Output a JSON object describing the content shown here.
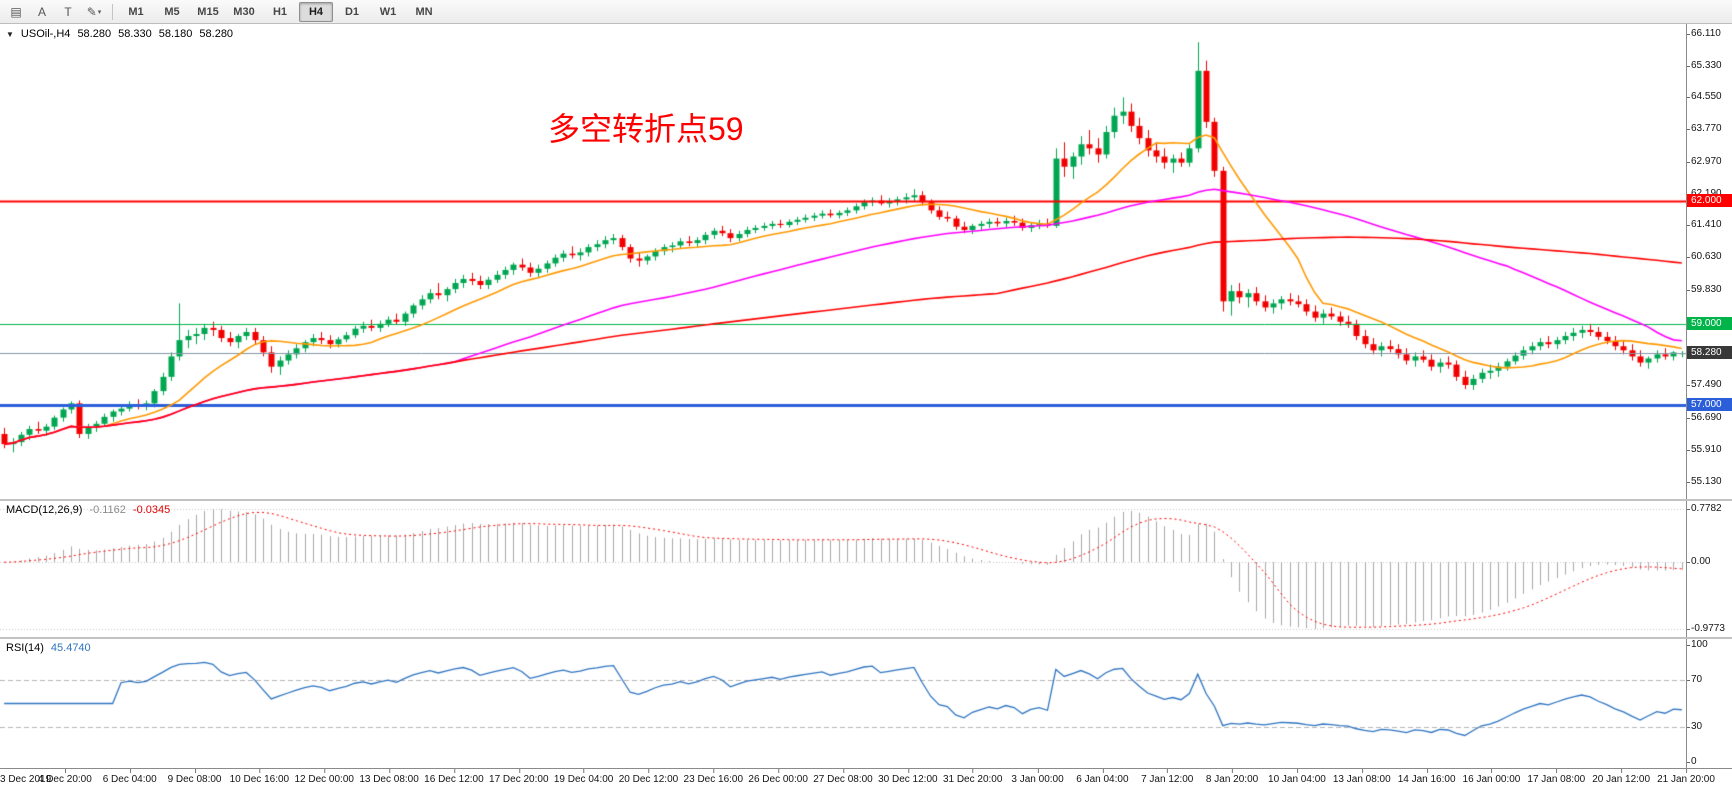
{
  "toolbar": {
    "icons": [
      {
        "name": "charts-grid-icon",
        "glyph": "▤"
      },
      {
        "name": "cursor-a-tool",
        "glyph": "A"
      },
      {
        "name": "text-tool",
        "glyph": "T"
      },
      {
        "name": "line-studies-tool",
        "glyph": "✎",
        "caret": "▾"
      }
    ],
    "timeframes": [
      "M1",
      "M5",
      "M15",
      "M30",
      "H1",
      "H4",
      "D1",
      "W1",
      "MN"
    ],
    "active_timeframe": "H4"
  },
  "chart": {
    "header": {
      "collapse_glyph": "▼",
      "symbol": "USOil-,H4",
      "open": "58.280",
      "high": "58.330",
      "low": "58.180",
      "close": "58.280"
    },
    "annotation": "多空转折点59",
    "colors": {
      "up": "#00a651",
      "down": "#f20000",
      "axis_text": "#141414"
    },
    "price_axis": {
      "ticks": [
        "66.110",
        "65.330",
        "64.550",
        "63.770",
        "62.970",
        "62.190",
        "61.410",
        "60.630",
        "59.830",
        "57.490",
        "56.690",
        "55.910",
        "55.130"
      ]
    }
  },
  "indicators": {
    "macd": {
      "label": "MACD(12,26,9)",
      "value_main": "-0.1162",
      "value_signal": "-0.0345",
      "fast": 12,
      "slow": 26,
      "signal": 9,
      "axis": [
        "0.7782",
        "0.00",
        "-0.9773"
      ],
      "axis_max": 0.7782,
      "axis_min": -0.9773,
      "hist_color": "#a8a8a8",
      "signal_color": "#ff0000"
    },
    "rsi": {
      "label": "RSI(14)",
      "value": "45.4740",
      "period": 14,
      "axis": [
        "100",
        "70",
        "30",
        "0"
      ],
      "levels": [
        70,
        30
      ],
      "color": "#2f74c0"
    }
  },
  "chart_data": {
    "type": "candlestick",
    "symbol": "USOil",
    "timeframe": "H4",
    "price_range": [
      55.0,
      66.25
    ],
    "levels": [
      {
        "price": 62.0,
        "label": "62.000",
        "color": "#ff0000",
        "line_width": 2,
        "badge_bg": "#ff0000"
      },
      {
        "price": 59.0,
        "label": "59.000",
        "color": "#00b44a",
        "line_width": 1,
        "badge_bg": "#00b44a"
      },
      {
        "price": 57.0,
        "label": "57.000",
        "color": "#2b5fd9",
        "line_width": 3,
        "badge_bg": "#2b5fd9"
      },
      {
        "price": 58.28,
        "label": "58.280",
        "color": "#8096a8",
        "line_width": 1,
        "badge_bg": "#383838"
      }
    ],
    "moving_averages": [
      {
        "period": 13,
        "color": "#ff9900"
      },
      {
        "period": 55,
        "color": "#ff00ff"
      },
      {
        "period": 120,
        "color": "#ff0000"
      }
    ],
    "x_labels": [
      "3 Dec 2019",
      "4 Dec 20:00",
      "6 Dec 04:00",
      "9 Dec 08:00",
      "10 Dec 16:00",
      "12 Dec 00:00",
      "13 Dec 08:00",
      "16 Dec 12:00",
      "17 Dec 20:00",
      "19 Dec 04:00",
      "20 Dec 12:00",
      "23 Dec 16:00",
      "26 Dec 00:00",
      "27 Dec 08:00",
      "30 Dec 12:00",
      "31 Dec 20:00",
      "3 Jan 00:00",
      "6 Jan 04:00",
      "7 Jan 12:00",
      "8 Jan 20:00",
      "10 Jan 04:00",
      "13 Jan 08:00",
      "14 Jan 16:00",
      "16 Jan 00:00",
      "17 Jan 08:00",
      "20 Jan 12:00",
      "21 Jan 20:00"
    ],
    "ohlc": [
      [
        56.3,
        56.45,
        55.95,
        56.05
      ],
      [
        56.05,
        56.2,
        55.85,
        56.1
      ],
      [
        56.1,
        56.35,
        56.0,
        56.28
      ],
      [
        56.28,
        56.5,
        56.15,
        56.42
      ],
      [
        56.42,
        56.6,
        56.3,
        56.38
      ],
      [
        56.38,
        56.55,
        56.25,
        56.48
      ],
      [
        56.48,
        56.75,
        56.4,
        56.7
      ],
      [
        56.7,
        56.95,
        56.6,
        56.9
      ],
      [
        56.9,
        57.1,
        56.8,
        57.05
      ],
      [
        57.05,
        57.12,
        56.2,
        56.3
      ],
      [
        56.3,
        56.55,
        56.18,
        56.45
      ],
      [
        56.45,
        56.62,
        56.35,
        56.55
      ],
      [
        56.55,
        56.8,
        56.48,
        56.72
      ],
      [
        56.72,
        56.9,
        56.6,
        56.85
      ],
      [
        56.85,
        57.0,
        56.75,
        56.92
      ],
      [
        56.92,
        57.1,
        56.85,
        57.02
      ],
      [
        57.02,
        57.15,
        56.9,
        56.98
      ],
      [
        56.98,
        57.12,
        56.88,
        57.05
      ],
      [
        57.05,
        57.4,
        56.95,
        57.35
      ],
      [
        57.35,
        57.8,
        57.25,
        57.7
      ],
      [
        57.7,
        58.3,
        57.6,
        58.2
      ],
      [
        58.2,
        59.5,
        58.1,
        58.6
      ],
      [
        58.6,
        58.85,
        58.4,
        58.7
      ],
      [
        58.7,
        58.9,
        58.5,
        58.75
      ],
      [
        58.75,
        59.0,
        58.6,
        58.9
      ],
      [
        58.9,
        59.05,
        58.7,
        58.85
      ],
      [
        58.85,
        58.95,
        58.55,
        58.65
      ],
      [
        58.65,
        58.8,
        58.45,
        58.55
      ],
      [
        58.55,
        58.75,
        58.4,
        58.7
      ],
      [
        58.7,
        58.9,
        58.6,
        58.8
      ],
      [
        58.8,
        58.9,
        58.5,
        58.6
      ],
      [
        58.6,
        58.7,
        58.2,
        58.3
      ],
      [
        58.3,
        58.45,
        57.8,
        57.95
      ],
      [
        57.95,
        58.2,
        57.75,
        58.1
      ],
      [
        58.1,
        58.35,
        58.0,
        58.25
      ],
      [
        58.25,
        58.5,
        58.15,
        58.4
      ],
      [
        58.4,
        58.6,
        58.3,
        58.55
      ],
      [
        58.55,
        58.75,
        58.45,
        58.65
      ],
      [
        58.65,
        58.8,
        58.5,
        58.6
      ],
      [
        58.6,
        58.72,
        58.4,
        58.5
      ],
      [
        58.5,
        58.68,
        58.42,
        58.62
      ],
      [
        58.62,
        58.8,
        58.55,
        58.72
      ],
      [
        58.72,
        58.95,
        58.65,
        58.88
      ],
      [
        58.88,
        59.05,
        58.78,
        58.95
      ],
      [
        58.95,
        59.1,
        58.82,
        58.9
      ],
      [
        58.9,
        59.08,
        58.8,
        59.0
      ],
      [
        59.0,
        59.18,
        58.92,
        59.1
      ],
      [
        59.1,
        59.25,
        58.98,
        59.05
      ],
      [
        59.05,
        59.3,
        58.95,
        59.25
      ],
      [
        59.25,
        59.5,
        59.15,
        59.45
      ],
      [
        59.45,
        59.7,
        59.35,
        59.6
      ],
      [
        59.6,
        59.85,
        59.5,
        59.75
      ],
      [
        59.75,
        60.0,
        59.6,
        59.7
      ],
      [
        59.7,
        59.9,
        59.55,
        59.85
      ],
      [
        59.85,
        60.1,
        59.75,
        60.0
      ],
      [
        60.0,
        60.2,
        59.88,
        60.1
      ],
      [
        60.1,
        60.25,
        59.95,
        60.05
      ],
      [
        60.05,
        60.18,
        59.85,
        59.95
      ],
      [
        59.95,
        60.15,
        59.85,
        60.08
      ],
      [
        60.08,
        60.3,
        60.0,
        60.2
      ],
      [
        60.2,
        60.4,
        60.1,
        60.32
      ],
      [
        60.32,
        60.5,
        60.2,
        60.45
      ],
      [
        60.45,
        60.6,
        60.3,
        60.38
      ],
      [
        60.38,
        60.5,
        60.15,
        60.25
      ],
      [
        60.25,
        60.45,
        60.15,
        60.35
      ],
      [
        60.35,
        60.55,
        60.25,
        60.48
      ],
      [
        60.48,
        60.7,
        60.4,
        60.62
      ],
      [
        60.62,
        60.8,
        60.52,
        60.72
      ],
      [
        60.72,
        60.9,
        60.6,
        60.68
      ],
      [
        60.68,
        60.85,
        60.55,
        60.75
      ],
      [
        60.75,
        60.95,
        60.65,
        60.88
      ],
      [
        60.88,
        61.05,
        60.78,
        60.95
      ],
      [
        60.95,
        61.15,
        60.85,
        61.05
      ],
      [
        61.05,
        61.2,
        60.95,
        61.1
      ],
      [
        61.1,
        61.18,
        60.8,
        60.88
      ],
      [
        60.88,
        60.95,
        60.5,
        60.6
      ],
      [
        60.6,
        60.75,
        60.4,
        60.55
      ],
      [
        60.55,
        60.7,
        60.45,
        60.65
      ],
      [
        60.65,
        60.85,
        60.55,
        60.78
      ],
      [
        60.78,
        60.95,
        60.68,
        60.88
      ],
      [
        60.88,
        61.0,
        60.75,
        60.92
      ],
      [
        60.92,
        61.1,
        60.85,
        61.02
      ],
      [
        61.02,
        61.15,
        60.9,
        60.98
      ],
      [
        60.98,
        61.12,
        60.88,
        61.05
      ],
      [
        61.05,
        61.25,
        60.95,
        61.18
      ],
      [
        61.18,
        61.35,
        61.08,
        61.28
      ],
      [
        61.28,
        61.4,
        61.15,
        61.22
      ],
      [
        61.22,
        61.32,
        61.0,
        61.1
      ],
      [
        61.1,
        61.28,
        61.02,
        61.2
      ],
      [
        61.2,
        61.38,
        61.12,
        61.3
      ],
      [
        61.3,
        61.42,
        61.22,
        61.35
      ],
      [
        61.35,
        61.48,
        61.28,
        61.4
      ],
      [
        61.4,
        61.52,
        61.32,
        61.45
      ],
      [
        61.45,
        61.55,
        61.35,
        61.42
      ],
      [
        61.42,
        61.56,
        61.36,
        61.5
      ],
      [
        61.5,
        61.62,
        61.42,
        61.55
      ],
      [
        61.55,
        61.68,
        61.48,
        61.6
      ],
      [
        61.6,
        61.72,
        61.52,
        61.65
      ],
      [
        61.65,
        61.78,
        61.58,
        61.7
      ],
      [
        61.7,
        61.8,
        61.6,
        61.66
      ],
      [
        61.66,
        61.78,
        61.58,
        61.72
      ],
      [
        61.72,
        61.85,
        61.64,
        61.78
      ],
      [
        61.78,
        61.95,
        61.7,
        61.88
      ],
      [
        61.88,
        62.05,
        61.8,
        61.98
      ],
      [
        61.98,
        62.1,
        61.88,
        62.02
      ],
      [
        62.02,
        62.15,
        61.9,
        61.95
      ],
      [
        61.95,
        62.08,
        61.85,
        62.0
      ],
      [
        62.0,
        62.12,
        61.9,
        62.05
      ],
      [
        62.05,
        62.2,
        61.95,
        62.1
      ],
      [
        62.1,
        62.3,
        62.0,
        62.15
      ],
      [
        62.15,
        62.25,
        61.9,
        61.98
      ],
      [
        61.98,
        62.05,
        61.7,
        61.78
      ],
      [
        61.78,
        61.88,
        61.55,
        61.62
      ],
      [
        61.62,
        61.75,
        61.5,
        61.58
      ],
      [
        61.58,
        61.65,
        61.3,
        61.38
      ],
      [
        61.38,
        61.5,
        61.22,
        61.3
      ],
      [
        61.3,
        61.45,
        61.2,
        61.4
      ],
      [
        61.4,
        61.52,
        61.3,
        61.45
      ],
      [
        61.45,
        61.58,
        61.35,
        61.5
      ],
      [
        61.5,
        61.6,
        61.38,
        61.46
      ],
      [
        61.46,
        61.6,
        61.35,
        61.52
      ],
      [
        61.52,
        61.65,
        61.4,
        61.48
      ],
      [
        61.48,
        61.58,
        61.28,
        61.35
      ],
      [
        61.35,
        61.5,
        61.25,
        61.42
      ],
      [
        61.42,
        61.55,
        61.32,
        61.45
      ],
      [
        61.45,
        61.58,
        61.35,
        61.4
      ],
      [
        61.4,
        63.3,
        61.35,
        63.05
      ],
      [
        63.05,
        63.45,
        62.6,
        62.85
      ],
      [
        62.85,
        63.2,
        62.55,
        63.1
      ],
      [
        63.1,
        63.6,
        62.9,
        63.4
      ],
      [
        63.4,
        63.75,
        63.15,
        63.3
      ],
      [
        63.3,
        63.55,
        62.95,
        63.15
      ],
      [
        63.15,
        63.85,
        63.05,
        63.7
      ],
      [
        63.7,
        64.3,
        63.55,
        64.1
      ],
      [
        64.1,
        64.55,
        63.9,
        64.2
      ],
      [
        64.2,
        64.4,
        63.7,
        63.85
      ],
      [
        63.85,
        64.05,
        63.4,
        63.55
      ],
      [
        63.55,
        63.75,
        63.1,
        63.25
      ],
      [
        63.25,
        63.45,
        62.95,
        63.1
      ],
      [
        63.1,
        63.3,
        62.8,
        62.95
      ],
      [
        62.95,
        63.15,
        62.7,
        63.05
      ],
      [
        63.05,
        63.2,
        62.85,
        62.95
      ],
      [
        62.95,
        63.4,
        62.85,
        63.3
      ],
      [
        63.3,
        65.9,
        63.2,
        65.2
      ],
      [
        65.2,
        65.45,
        63.8,
        63.95
      ],
      [
        63.95,
        64.05,
        62.6,
        62.75
      ],
      [
        62.75,
        62.85,
        59.3,
        59.55
      ],
      [
        59.55,
        59.95,
        59.2,
        59.8
      ],
      [
        59.8,
        60.0,
        59.5,
        59.65
      ],
      [
        59.65,
        59.85,
        59.4,
        59.75
      ],
      [
        59.75,
        59.9,
        59.45,
        59.55
      ],
      [
        59.55,
        59.7,
        59.3,
        59.4
      ],
      [
        59.4,
        59.6,
        59.25,
        59.5
      ],
      [
        59.5,
        59.68,
        59.35,
        59.6
      ],
      [
        59.6,
        59.75,
        59.45,
        59.55
      ],
      [
        59.55,
        59.7,
        59.4,
        59.48
      ],
      [
        59.48,
        59.6,
        59.2,
        59.3
      ],
      [
        59.3,
        59.45,
        59.05,
        59.15
      ],
      [
        59.15,
        59.35,
        59.0,
        59.25
      ],
      [
        59.25,
        59.4,
        59.1,
        59.18
      ],
      [
        59.18,
        59.3,
        58.95,
        59.05
      ],
      [
        59.05,
        59.2,
        58.9,
        59.0
      ],
      [
        59.0,
        59.1,
        58.6,
        58.7
      ],
      [
        58.7,
        58.85,
        58.4,
        58.5
      ],
      [
        58.5,
        58.65,
        58.25,
        58.35
      ],
      [
        58.35,
        58.55,
        58.2,
        58.45
      ],
      [
        58.45,
        58.6,
        58.3,
        58.38
      ],
      [
        58.38,
        58.5,
        58.15,
        58.25
      ],
      [
        58.25,
        58.4,
        58.0,
        58.1
      ],
      [
        58.1,
        58.3,
        57.95,
        58.2
      ],
      [
        58.2,
        58.35,
        58.05,
        58.12
      ],
      [
        58.12,
        58.25,
        57.85,
        57.95
      ],
      [
        57.95,
        58.15,
        57.8,
        58.05
      ],
      [
        58.05,
        58.2,
        57.9,
        58.0
      ],
      [
        58.0,
        58.1,
        57.6,
        57.7
      ],
      [
        57.7,
        57.85,
        57.4,
        57.5
      ],
      [
        57.5,
        57.75,
        57.38,
        57.65
      ],
      [
        57.65,
        57.9,
        57.55,
        57.8
      ],
      [
        57.8,
        58.0,
        57.65,
        57.85
      ],
      [
        57.85,
        58.05,
        57.7,
        57.95
      ],
      [
        57.95,
        58.15,
        57.85,
        58.08
      ],
      [
        58.08,
        58.3,
        58.0,
        58.22
      ],
      [
        58.22,
        58.45,
        58.12,
        58.35
      ],
      [
        58.35,
        58.55,
        58.25,
        58.45
      ],
      [
        58.45,
        58.65,
        58.35,
        58.55
      ],
      [
        58.55,
        58.7,
        58.4,
        58.5
      ],
      [
        58.5,
        58.68,
        58.38,
        58.6
      ],
      [
        58.6,
        58.8,
        58.5,
        58.7
      ],
      [
        58.7,
        58.9,
        58.58,
        58.78
      ],
      [
        58.78,
        58.95,
        58.65,
        58.85
      ],
      [
        58.85,
        59.0,
        58.7,
        58.8
      ],
      [
        58.8,
        58.92,
        58.6,
        58.68
      ],
      [
        58.68,
        58.8,
        58.5,
        58.58
      ],
      [
        58.58,
        58.7,
        58.35,
        58.45
      ],
      [
        58.45,
        58.6,
        58.25,
        58.35
      ],
      [
        58.35,
        58.5,
        58.1,
        58.2
      ],
      [
        58.2,
        58.35,
        57.95,
        58.05
      ],
      [
        58.05,
        58.2,
        57.9,
        58.15
      ],
      [
        58.15,
        58.35,
        58.05,
        58.25
      ],
      [
        58.25,
        58.4,
        58.12,
        58.2
      ],
      [
        58.2,
        58.33,
        58.1,
        58.3
      ],
      [
        58.28,
        58.33,
        58.18,
        58.28
      ]
    ]
  }
}
